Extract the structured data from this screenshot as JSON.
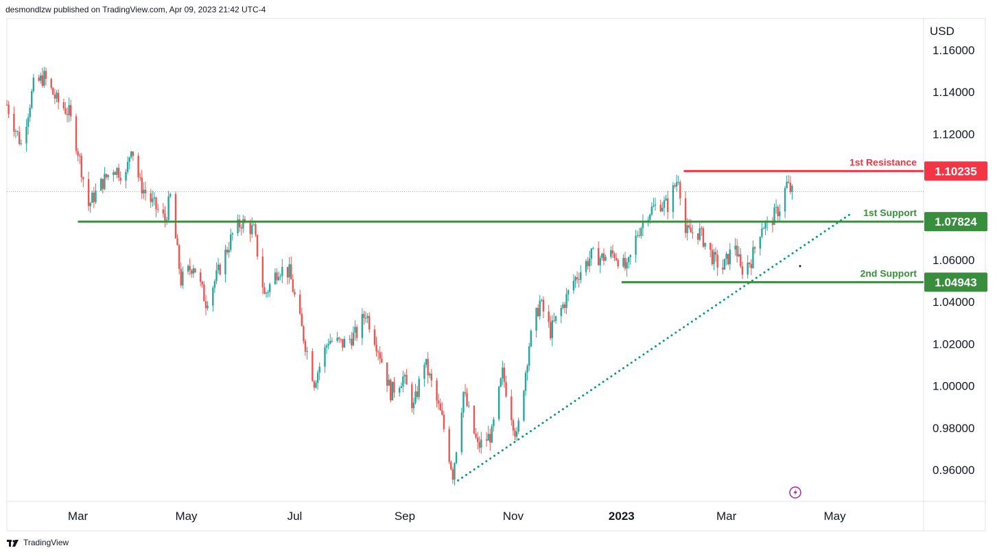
{
  "header": {
    "publisher_text": "desmondlzw published on TradingView.com, Apr 09, 2023 21:42 UTC-4"
  },
  "footer": {
    "brand": "TradingView"
  },
  "colors": {
    "up": "#26a69a",
    "down": "#ef5350",
    "resistance": "#f23645",
    "support": "#388e3c",
    "trendline": "#089981",
    "grid_border": "#e0e3eb",
    "text": "#131722"
  },
  "chart_data": {
    "type": "candlestick",
    "symbol_currency": "USD",
    "y_axis": {
      "unit": "USD",
      "range": [
        0.945,
        1.175
      ],
      "ticks": [
        {
          "value": 1.16,
          "label": "1.16000"
        },
        {
          "value": 1.14,
          "label": "1.14000"
        },
        {
          "value": 1.12,
          "label": "1.12000"
        },
        {
          "value": 1.06,
          "label": "1.06000"
        },
        {
          "value": 1.04,
          "label": "1.04000"
        },
        {
          "value": 1.02,
          "label": "1.02000"
        },
        {
          "value": 1.0,
          "label": "1.00000"
        },
        {
          "value": 0.98,
          "label": "0.98000"
        },
        {
          "value": 0.96,
          "label": "0.96000"
        }
      ]
    },
    "x_axis": {
      "range": [
        "2022-01-20",
        "2023-06-20"
      ],
      "ticks": [
        {
          "date": "2022-03-01",
          "label": "Mar",
          "bold": false
        },
        {
          "date": "2022-05-01",
          "label": "May",
          "bold": false
        },
        {
          "date": "2022-07-01",
          "label": "Jul",
          "bold": false
        },
        {
          "date": "2022-09-01",
          "label": "Sep",
          "bold": false
        },
        {
          "date": "2022-11-01",
          "label": "Nov",
          "bold": false
        },
        {
          "date": "2023-01-01",
          "label": "2023",
          "bold": true
        },
        {
          "date": "2023-03-01",
          "label": "Mar",
          "bold": false
        },
        {
          "date": "2023-05-01",
          "label": "May",
          "bold": false
        }
      ]
    },
    "price_path": [
      [
        "2022-01-20",
        1.134
      ],
      [
        "2022-01-28",
        1.115
      ],
      [
        "2022-02-04",
        1.143
      ],
      [
        "2022-02-10",
        1.147
      ],
      [
        "2022-02-17",
        1.136
      ],
      [
        "2022-02-24",
        1.13
      ],
      [
        "2022-03-01",
        1.112
      ],
      [
        "2022-03-07",
        1.086
      ],
      [
        "2022-03-14",
        1.096
      ],
      [
        "2022-03-21",
        1.104
      ],
      [
        "2022-03-28",
        1.1
      ],
      [
        "2022-03-31",
        1.115
      ],
      [
        "2022-04-05",
        1.096
      ],
      [
        "2022-04-12",
        1.087
      ],
      [
        "2022-04-19",
        1.079
      ],
      [
        "2022-04-22",
        1.09
      ],
      [
        "2022-04-28",
        1.05
      ],
      [
        "2022-05-05",
        1.058
      ],
      [
        "2022-05-12",
        1.04
      ],
      [
        "2022-05-18",
        1.052
      ],
      [
        "2022-05-27",
        1.072
      ],
      [
        "2022-06-01",
        1.078
      ],
      [
        "2022-06-08",
        1.074
      ],
      [
        "2022-06-14",
        1.043
      ],
      [
        "2022-06-22",
        1.056
      ],
      [
        "2022-06-28",
        1.054
      ],
      [
        "2022-07-05",
        1.027
      ],
      [
        "2022-07-12",
        1.002
      ],
      [
        "2022-07-20",
        1.022
      ],
      [
        "2022-07-28",
        1.02
      ],
      [
        "2022-08-05",
        1.025
      ],
      [
        "2022-08-10",
        1.035
      ],
      [
        "2022-08-17",
        1.018
      ],
      [
        "2022-08-24",
        0.997
      ],
      [
        "2022-08-31",
        1.004
      ],
      [
        "2022-09-06",
        0.99
      ],
      [
        "2022-09-12",
        1.012
      ],
      [
        "2022-09-16",
        1.001
      ],
      [
        "2022-09-22",
        0.984
      ],
      [
        "2022-09-28",
        0.958
      ],
      [
        "2022-10-04",
        0.997
      ],
      [
        "2022-10-12",
        0.971
      ],
      [
        "2022-10-20",
        0.977
      ],
      [
        "2022-10-26",
        1.006
      ],
      [
        "2022-11-03",
        0.975
      ],
      [
        "2022-11-10",
        1.02
      ],
      [
        "2022-11-16",
        1.04
      ],
      [
        "2022-11-22",
        1.026
      ],
      [
        "2022-11-30",
        1.04
      ],
      [
        "2022-12-05",
        1.05
      ],
      [
        "2022-12-09",
        1.055
      ],
      [
        "2022-12-15",
        1.062
      ],
      [
        "2022-12-21",
        1.061
      ],
      [
        "2022-12-28",
        1.063
      ],
      [
        "2023-01-04",
        1.055
      ],
      [
        "2023-01-10",
        1.073
      ],
      [
        "2023-01-16",
        1.083
      ],
      [
        "2023-01-23",
        1.087
      ],
      [
        "2023-01-27",
        1.086
      ],
      [
        "2023-02-02",
        1.1
      ],
      [
        "2023-02-06",
        1.073
      ],
      [
        "2023-02-14",
        1.073
      ],
      [
        "2023-02-22",
        1.06
      ],
      [
        "2023-02-27",
        1.056
      ],
      [
        "2023-03-06",
        1.068
      ],
      [
        "2023-03-09",
        1.055
      ],
      [
        "2023-03-15",
        1.06
      ],
      [
        "2023-03-21",
        1.077
      ],
      [
        "2023-03-24",
        1.076
      ],
      [
        "2023-03-31",
        1.085
      ],
      [
        "2023-04-04",
        1.096
      ],
      [
        "2023-04-07",
        1.092
      ]
    ],
    "lines": [
      {
        "label": "1st Resistance",
        "price": 1.10235,
        "price_label": "1.10235",
        "start": "2023-02-05",
        "color": "#f23645"
      },
      {
        "label": "1st Support",
        "price": 1.07824,
        "price_label": "1.07824",
        "start": "2022-03-01",
        "color": "#388e3c"
      },
      {
        "label": "2nd Support",
        "price": 1.04943,
        "price_label": "1.04943",
        "start": "2023-01-01",
        "color": "#388e3c"
      }
    ],
    "trendline": {
      "from": [
        "2022-10-01",
        0.955
      ],
      "to": [
        "2023-05-10",
        1.082
      ],
      "style": "dotted"
    },
    "last_price": 1.0925,
    "grid": false,
    "legend": "none"
  }
}
